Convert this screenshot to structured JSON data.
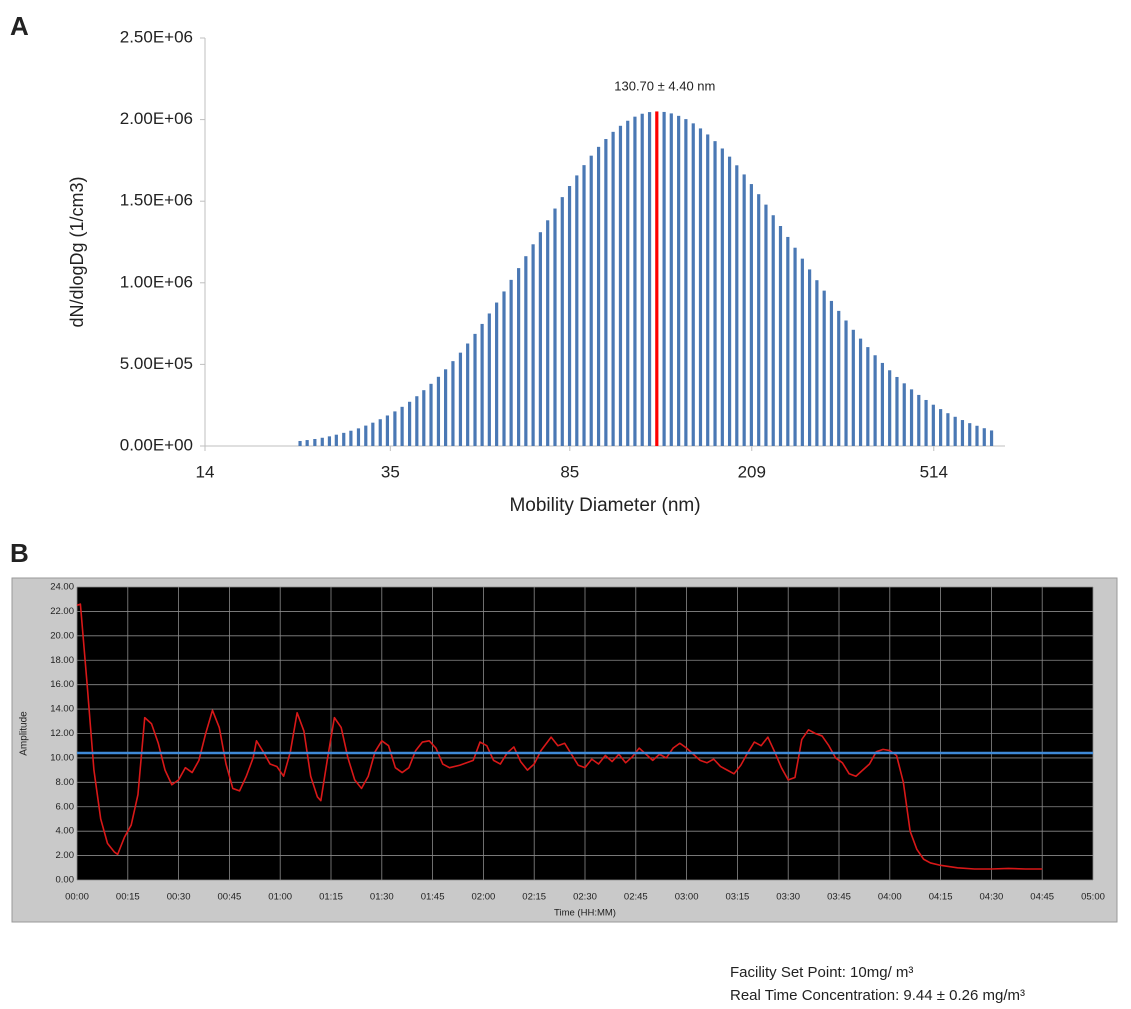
{
  "chart_data": [
    {
      "type": "bar",
      "panel": "A",
      "x_label": "Mobility Diameter  (nm)",
      "y_label": "dN/dlogDg  (1/cm3)",
      "annotation": {
        "text": "130.70 ± 4.40 nm",
        "x": 130.7,
        "color": "#ff0000"
      },
      "color": "#4a78b4",
      "xscale": "log",
      "x": [
        22.4,
        23.2,
        24.1,
        25.0,
        25.9,
        26.8,
        27.8,
        28.8,
        29.9,
        31.0,
        32.1,
        33.3,
        34.5,
        35.8,
        37.1,
        38.5,
        39.9,
        41.3,
        42.8,
        44.4,
        46.0,
        47.7,
        49.5,
        51.3,
        53.2,
        55.1,
        57.1,
        59.2,
        61.4,
        63.6,
        66.0,
        68.4,
        70.9,
        73.5,
        76.2,
        79.0,
        81.9,
        84.9,
        88.0,
        91.2,
        94.5,
        98.0,
        101.6,
        105.3,
        109.2,
        113.2,
        117.3,
        121.6,
        126.1,
        130.7,
        135.5,
        140.4,
        145.6,
        150.9,
        156.5,
        162.2,
        168.1,
        174.3,
        180.7,
        187.3,
        194.1,
        201.3,
        208.6,
        216.3,
        224.2,
        232.4,
        240.9,
        249.8,
        258.9,
        268.4,
        278.2,
        288.4,
        299.0,
        309.9,
        321.3,
        333.1,
        345.3,
        357.9,
        371.0,
        384.6,
        398.7,
        413.3,
        428.5,
        444.2,
        460.5,
        477.3,
        494.8,
        512.9,
        531.7,
        551.2,
        571.4,
        592.3,
        614.0,
        636.5,
        659.8,
        684.0
      ],
      "values": [
        30700,
        36400,
        42900,
        50500,
        59200,
        69300,
        80600,
        93600,
        108000,
        125000,
        143000,
        164000,
        187000,
        212000,
        240000,
        271000,
        305000,
        342000,
        381000,
        424000,
        470000,
        520000,
        572000,
        628000,
        687000,
        748000,
        812000,
        879000,
        947000,
        1018000,
        1090000,
        1163000,
        1236000,
        1310000,
        1383000,
        1455000,
        1525000,
        1593000,
        1658000,
        1721000,
        1779000,
        1833000,
        1881000,
        1925000,
        1962000,
        1993000,
        2018000,
        2036000,
        2046000,
        2050000,
        2047000,
        2038000,
        2023000,
        2003000,
        1977000,
        1946000,
        1909000,
        1868000,
        1823000,
        1773000,
        1720000,
        1664000,
        1605000,
        1543000,
        1479000,
        1414000,
        1348000,
        1281000,
        1215000,
        1148000,
        1082000,
        1016000,
        952000,
        889000,
        828000,
        769000,
        712000,
        658000,
        606000,
        556000,
        509000,
        464000,
        423000,
        384000,
        347000,
        313000,
        282000,
        253000,
        226000,
        201000,
        179000,
        159000,
        140000,
        124000,
        109000,
        95300
      ],
      "xlim": [
        14,
        731
      ],
      "xticks": [
        14,
        35,
        85,
        209,
        514
      ],
      "ylim": [
        0,
        2500000
      ],
      "yticks": [
        {
          "value": 0,
          "label": "0.00E+00"
        },
        {
          "value": 500000,
          "label": "5.00E+05"
        },
        {
          "value": 1000000,
          "label": "1.00E+06"
        },
        {
          "value": 1500000,
          "label": "1.50E+06"
        },
        {
          "value": 2000000,
          "label": "2.00E+06"
        },
        {
          "value": 2500000,
          "label": "2.50E+06"
        }
      ]
    },
    {
      "type": "line",
      "panel": "B",
      "x_label": "Time (HH:MM)",
      "y_label": "Amplitude",
      "grid": true,
      "background": "#000000",
      "legend": "bottom-right",
      "xlim": [
        0,
        300
      ],
      "xticks": [
        {
          "value": 0,
          "label": "00:00"
        },
        {
          "value": 15,
          "label": "00:15"
        },
        {
          "value": 30,
          "label": "00:30"
        },
        {
          "value": 45,
          "label": "00:45"
        },
        {
          "value": 60,
          "label": "01:00"
        },
        {
          "value": 75,
          "label": "01:15"
        },
        {
          "value": 90,
          "label": "01:30"
        },
        {
          "value": 105,
          "label": "01:45"
        },
        {
          "value": 120,
          "label": "02:00"
        },
        {
          "value": 135,
          "label": "02:15"
        },
        {
          "value": 150,
          "label": "02:30"
        },
        {
          "value": 165,
          "label": "02:45"
        },
        {
          "value": 180,
          "label": "03:00"
        },
        {
          "value": 195,
          "label": "03:15"
        },
        {
          "value": 210,
          "label": "03:30"
        },
        {
          "value": 225,
          "label": "03:45"
        },
        {
          "value": 240,
          "label": "04:00"
        },
        {
          "value": 255,
          "label": "04:15"
        },
        {
          "value": 270,
          "label": "04:30"
        },
        {
          "value": 285,
          "label": "04:45"
        },
        {
          "value": 300,
          "label": "05:00"
        }
      ],
      "ylim": [
        0,
        24
      ],
      "yticks": [
        {
          "value": 0,
          "label": "0.00"
        },
        {
          "value": 2,
          "label": "2.00"
        },
        {
          "value": 4,
          "label": "4.00"
        },
        {
          "value": 6,
          "label": "6.00"
        },
        {
          "value": 8,
          "label": "8.00"
        },
        {
          "value": 10,
          "label": "10.00"
        },
        {
          "value": 12,
          "label": "12.00"
        },
        {
          "value": 14,
          "label": "14.00"
        },
        {
          "value": 16,
          "label": "16.00"
        },
        {
          "value": 18,
          "label": "18.00"
        },
        {
          "value": 20,
          "label": "20.00"
        },
        {
          "value": 22,
          "label": "22.00"
        },
        {
          "value": 24,
          "label": "24.00"
        }
      ],
      "series": [
        {
          "name": "Facility Set Point:  10mg/ m³",
          "color": "#3f8ad8",
          "x": [
            0,
            300
          ],
          "values": [
            10.4,
            10.4
          ]
        },
        {
          "name": "Real Time  Concentration: 9.44 ± 0.26 mg/m³",
          "color": "#d81818",
          "x": [
            0,
            1,
            3,
            5,
            7,
            9,
            11,
            12,
            14,
            16,
            18,
            20,
            22,
            24,
            26,
            28,
            30,
            32,
            34,
            36,
            38,
            40,
            42,
            44,
            46,
            48,
            50,
            52,
            53,
            55,
            57,
            59,
            61,
            63,
            65,
            67,
            69,
            71,
            72,
            74,
            76,
            78,
            80,
            82,
            84,
            86,
            88,
            90,
            92,
            94,
            96,
            98,
            100,
            102,
            104,
            106,
            108,
            110,
            113,
            117,
            119,
            121,
            123,
            125,
            127,
            129,
            131,
            133,
            135,
            137,
            140,
            142,
            144,
            146,
            148,
            150,
            152,
            154,
            156,
            158,
            160,
            162,
            164,
            166,
            168,
            170,
            172,
            174,
            176,
            178,
            180,
            182,
            184,
            186,
            188,
            190,
            192,
            194,
            196,
            198,
            200,
            202,
            204,
            206,
            208,
            210,
            212,
            214,
            216,
            218,
            220,
            222,
            224,
            226,
            228,
            230,
            232,
            234,
            236,
            238,
            240,
            242,
            244,
            246,
            248,
            250,
            252,
            255,
            260,
            265,
            270,
            275,
            280,
            285
          ],
          "values": [
            22.5,
            22.6,
            16,
            9,
            5,
            3,
            2.3,
            2.1,
            3.5,
            4.5,
            7,
            13.3,
            12.8,
            11.2,
            9,
            7.8,
            8.2,
            9.2,
            8.8,
            9.8,
            12.0,
            13.9,
            12.5,
            9.5,
            7.5,
            7.3,
            8.5,
            10.0,
            11.4,
            10.5,
            9.5,
            9.3,
            8.5,
            10.5,
            13.7,
            12.2,
            8.5,
            6.8,
            6.5,
            10,
            13.3,
            12.5,
            10,
            8.2,
            7.5,
            8.5,
            10.5,
            11.4,
            11,
            9.2,
            8.8,
            9.2,
            10.6,
            11.3,
            11.4,
            10.8,
            9.5,
            9.2,
            9.4,
            9.8,
            11.3,
            11.0,
            9.8,
            9.5,
            10.4,
            10.9,
            9.7,
            9.0,
            9.5,
            10.6,
            11.7,
            11.0,
            11.2,
            10.3,
            9.4,
            9.2,
            9.9,
            9.5,
            10.2,
            9.7,
            10.3,
            9.6,
            10.1,
            10.8,
            10.3,
            9.8,
            10.3,
            10.0,
            10.8,
            11.2,
            10.8,
            10.3,
            9.8,
            9.6,
            9.9,
            9.3,
            9.0,
            8.7,
            9.4,
            10.4,
            11.3,
            11.0,
            11.7,
            10.5,
            9.2,
            8.2,
            8.4,
            11.5,
            12.3,
            12.0,
            11.8,
            11.0,
            10.0,
            9.6,
            8.7,
            8.5,
            9.0,
            9.5,
            10.5,
            10.7,
            10.6,
            10.2,
            8.0,
            4.0,
            2.5,
            1.7,
            1.4,
            1.2,
            1.0,
            0.9,
            0.9,
            0.95,
            0.9,
            0.9
          ]
        }
      ]
    }
  ]
}
